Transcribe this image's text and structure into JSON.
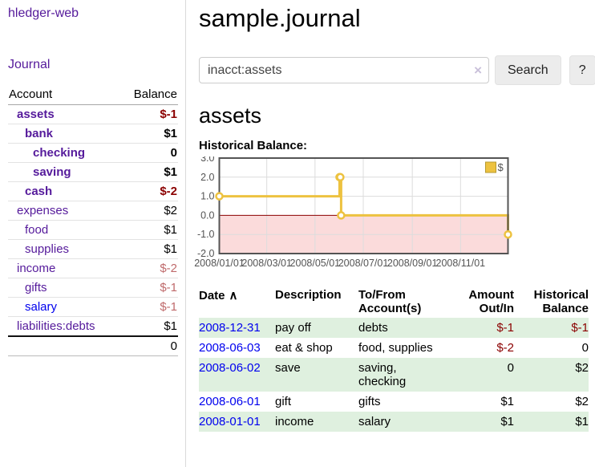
{
  "app": {
    "brand": "hledger-web"
  },
  "colors": {
    "link_purple": "#551a9b",
    "link_blue": "#0000ee",
    "negative_dark": "#8b0000",
    "negative_muted": "#bf6a6b",
    "row_green": "#dff0df",
    "chart_series_gold": "#EDC240",
    "chart_negative_fill": "#fbdbdb",
    "chart_zero_line": "#8b0000"
  },
  "sidebar": {
    "nav_journal": "Journal",
    "header": {
      "account": "Account",
      "balance": "Balance"
    },
    "accounts": [
      {
        "name": "assets",
        "indent": 0,
        "bold": true,
        "balance": "$-1"
      },
      {
        "name": "bank",
        "indent": 1,
        "bold": true,
        "balance": "$1"
      },
      {
        "name": "checking",
        "indent": 2,
        "bold": true,
        "balance": "0"
      },
      {
        "name": "saving",
        "indent": 2,
        "bold": true,
        "balance": "$1"
      },
      {
        "name": "cash",
        "indent": 1,
        "bold": true,
        "balance": "$-2"
      },
      {
        "name": "expenses",
        "indent": 0,
        "bold": false,
        "balance": "$2"
      },
      {
        "name": "food",
        "indent": 1,
        "bold": false,
        "balance": "$1"
      },
      {
        "name": "supplies",
        "indent": 1,
        "bold": false,
        "balance": "$1"
      },
      {
        "name": "income",
        "indent": 0,
        "bold": false,
        "balance": "$-2"
      },
      {
        "name": "gifts",
        "indent": 1,
        "bold": false,
        "balance": "$-1"
      },
      {
        "name": "salary",
        "indent": 1,
        "bold": false,
        "balance": "$-1",
        "link_color": "blue"
      },
      {
        "name": "liabilities:debts",
        "indent": 0,
        "bold": false,
        "balance": "$1"
      }
    ],
    "total": "0"
  },
  "main": {
    "title": "sample.journal",
    "search": {
      "value": "inacct:assets",
      "clear_icon": "×",
      "button": "Search",
      "help_button": "?"
    },
    "account_heading": "assets",
    "chart_label": "Historical Balance:"
  },
  "chart_data": {
    "type": "line",
    "step": true,
    "title": "Historical Balance:",
    "series": [
      {
        "name": "$",
        "color": "#EDC240",
        "points": [
          [
            "2008-01-01",
            1
          ],
          [
            "2008-06-01",
            2
          ],
          [
            "2008-06-02",
            2
          ],
          [
            "2008-06-03",
            0
          ],
          [
            "2008-12-31",
            -1
          ]
        ]
      }
    ],
    "x_domain": [
      "2008-01-01",
      "2008-12-31"
    ],
    "x_ticks": [
      {
        "date": "2008-01-01",
        "label": "2008/01/01"
      },
      {
        "date": "2008-03-01",
        "label": "2008/03/01"
      },
      {
        "date": "2008-05-01",
        "label": "2008/05/01"
      },
      {
        "date": "2008-07-01",
        "label": "2008/07/01"
      },
      {
        "date": "2008-09-01",
        "label": "2008/09/01"
      },
      {
        "date": "2008-11-01",
        "label": "2008/11/01"
      }
    ],
    "y_ticks": [
      3,
      2,
      1,
      0,
      -1,
      -2
    ],
    "ylim": [
      -2,
      3
    ],
    "grid": true,
    "legend": {
      "label": "$",
      "position": "top-right"
    },
    "negative_region_color": "#fbdbdb",
    "zero_line_color": "#8b0000"
  },
  "register": {
    "headers": {
      "date": "Date",
      "sort_icon": "∧",
      "description": "Description",
      "accounts": "To/From Account(s)",
      "amount": "Amount Out/In",
      "balance": "Historical Balance"
    },
    "rows": [
      {
        "date": "2008-12-31",
        "description": "pay off",
        "accounts": "debts",
        "amount": "$-1",
        "balance": "$-1"
      },
      {
        "date": "2008-06-03",
        "description": "eat & shop",
        "accounts": "food, supplies",
        "amount": "$-2",
        "balance": "0"
      },
      {
        "date": "2008-06-02",
        "description": "save",
        "accounts": "saving, checking",
        "amount": "0",
        "balance": "$2"
      },
      {
        "date": "2008-06-01",
        "description": "gift",
        "accounts": "gifts",
        "amount": "$1",
        "balance": "$2"
      },
      {
        "date": "2008-01-01",
        "description": "income",
        "accounts": "salary",
        "amount": "$1",
        "balance": "$1"
      }
    ]
  }
}
